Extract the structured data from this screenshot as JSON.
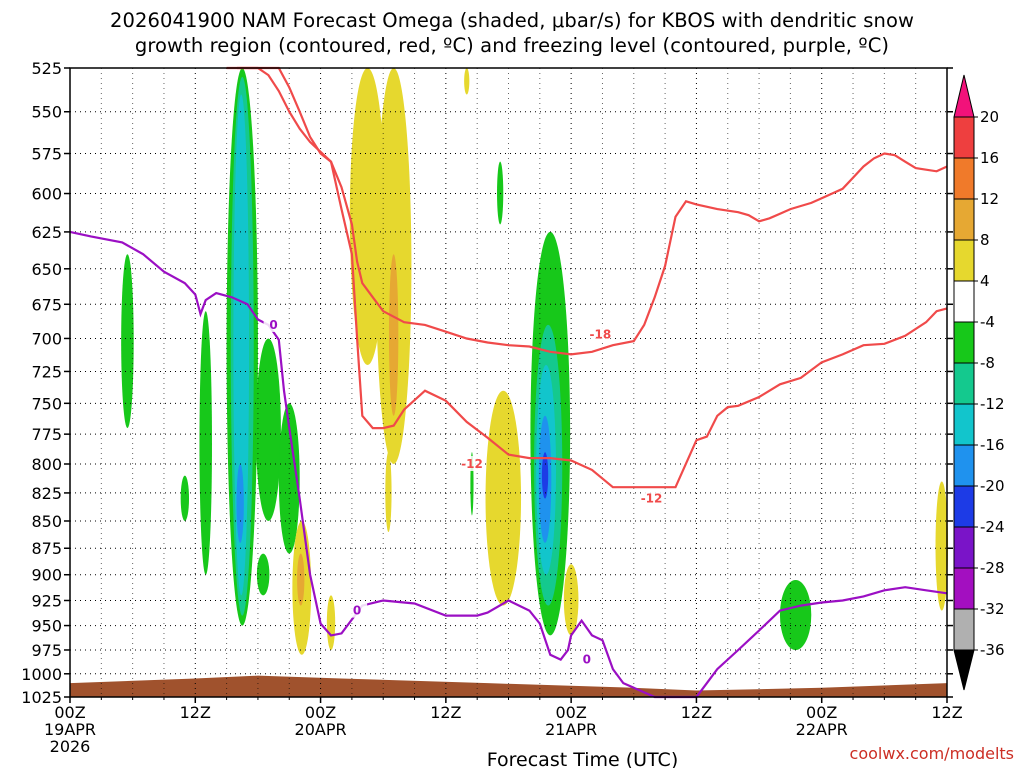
{
  "title": "2026041900 NAM Forecast Omega (shaded, μbar/s) for KBOS with dendritic snow\ngrowth region (contoured, red, ºC) and freezing level (contoured, purple, ºC)",
  "credit": "coolwx.com/modelts",
  "chart_data": {
    "type": "heatmap",
    "title": "2026041900 NAM Forecast Omega (shaded, μbar/s) for KBOS with dendritic snow growth region (contoured, red, ºC) and freezing level (contoured, purple, ºC)",
    "xlabel": "Forecast Time (UTC)",
    "ylabel": "",
    "x_unit": "forecast hour",
    "xlim": [
      0,
      84
    ],
    "ylim": [
      1025,
      525
    ],
    "y_scale": "log-pressure",
    "x_ticks": [
      {
        "hour": 0,
        "label": "00Z",
        "date": "19APR",
        "year": "2026"
      },
      {
        "hour": 12,
        "label": "12Z",
        "date": "",
        "year": ""
      },
      {
        "hour": 24,
        "label": "00Z",
        "date": "20APR",
        "year": ""
      },
      {
        "hour": 36,
        "label": "12Z",
        "date": "",
        "year": ""
      },
      {
        "hour": 48,
        "label": "00Z",
        "date": "21APR",
        "year": ""
      },
      {
        "hour": 60,
        "label": "12Z",
        "date": "",
        "year": ""
      },
      {
        "hour": 72,
        "label": "00Z",
        "date": "22APR",
        "year": ""
      },
      {
        "hour": 84,
        "label": "12Z",
        "date": "",
        "year": ""
      }
    ],
    "y_ticks": [
      525,
      550,
      575,
      600,
      625,
      650,
      675,
      700,
      725,
      750,
      775,
      800,
      825,
      850,
      875,
      900,
      925,
      950,
      975,
      1000,
      1025
    ],
    "grid": true,
    "colorbar": {
      "labels": [
        "20",
        "16",
        "12",
        "8",
        "4",
        "-4",
        "-8",
        "-12",
        "-16",
        "-20",
        "-24",
        "-28",
        "-32",
        "-36"
      ],
      "colors": [
        "#f2127a",
        "#ee3f3f",
        "#f07a2a",
        "#e6a833",
        "#e6d82e",
        "#ffffff",
        "#17c81a",
        "#14c98e",
        "#12c5cc",
        "#1f92ee",
        "#1d3be6",
        "#7a14c8",
        "#a30fc0",
        "#b0b0b0",
        "#000000"
      ]
    },
    "freezing_level_label": "0",
    "dendritic_labels": [
      "-12",
      "-18"
    ],
    "freezing_level_0C": {
      "x": [
        0,
        2,
        5,
        7,
        9,
        11,
        12,
        12.5,
        13,
        14,
        15.5,
        17,
        18,
        19,
        20,
        20.5,
        21,
        22,
        23,
        24,
        25,
        26,
        28,
        30,
        33,
        36,
        39,
        40,
        42,
        44,
        45,
        46,
        47,
        47.7,
        48,
        49,
        50,
        51,
        52,
        53,
        54,
        55,
        56,
        57,
        58,
        60,
        61,
        62,
        64,
        66,
        68,
        70,
        72,
        74,
        76,
        78,
        80,
        82,
        84
      ],
      "y": [
        625,
        628,
        632,
        640,
        652,
        660,
        668,
        682,
        672,
        667,
        670,
        675,
        686,
        690,
        701,
        740,
        770,
        830,
        900,
        948,
        960,
        958,
        930,
        925,
        928,
        940,
        940,
        937,
        925,
        935,
        948,
        980,
        985,
        975,
        960,
        945,
        960,
        965,
        995,
        1010,
        1015,
        1020,
        1025,
        1025,
        1025,
        1025,
        1010,
        995,
        975,
        955,
        935,
        930,
        927,
        925,
        921,
        915,
        912,
        915,
        918
      ]
    },
    "isotherm_minus18C": {
      "x": [
        15,
        16,
        17,
        18,
        19,
        20,
        21,
        22,
        23,
        25,
        26,
        27,
        27.5,
        28,
        29,
        30,
        32,
        34,
        36,
        38,
        40,
        42,
        44,
        46,
        48,
        50,
        52,
        54,
        55,
        56,
        57,
        58,
        59,
        60,
        62,
        64,
        65,
        66,
        67,
        68,
        69,
        70,
        71,
        72,
        73,
        74,
        75,
        76,
        77,
        78,
        79,
        80,
        81,
        82,
        83,
        84
      ],
      "y": [
        525,
        525,
        525,
        525,
        529,
        538,
        550,
        560,
        568,
        580,
        596,
        620,
        645,
        660,
        670,
        680,
        688,
        690,
        695,
        700,
        703,
        705,
        706,
        710,
        712,
        710,
        705,
        702,
        690,
        670,
        648,
        615,
        605,
        607,
        610,
        612,
        614,
        618,
        616,
        613,
        610,
        608,
        606,
        603,
        600,
        597,
        590,
        583,
        578,
        575,
        576,
        580,
        584,
        585,
        586,
        583
      ]
    },
    "isotherm_minus12C": {
      "x": [
        16,
        17,
        18,
        20,
        21,
        22,
        23,
        24,
        25,
        26,
        27,
        27.5,
        28,
        29,
        30,
        31,
        32,
        34,
        36,
        38,
        40,
        42,
        44,
        46,
        48,
        50,
        52,
        54,
        56,
        58,
        60,
        61,
        62,
        63,
        64,
        66,
        68,
        70,
        72,
        74,
        76,
        78,
        80,
        82,
        83,
        84
      ],
      "y": [
        525,
        525,
        525,
        525,
        536,
        550,
        565,
        575,
        580,
        610,
        640,
        700,
        760,
        770,
        770,
        768,
        755,
        740,
        748,
        765,
        778,
        792,
        795,
        795,
        797,
        805,
        820,
        820,
        820,
        820,
        780,
        777,
        760,
        753,
        752,
        745,
        735,
        730,
        718,
        712,
        705,
        704,
        698,
        688,
        680,
        678
      ]
    }
  }
}
